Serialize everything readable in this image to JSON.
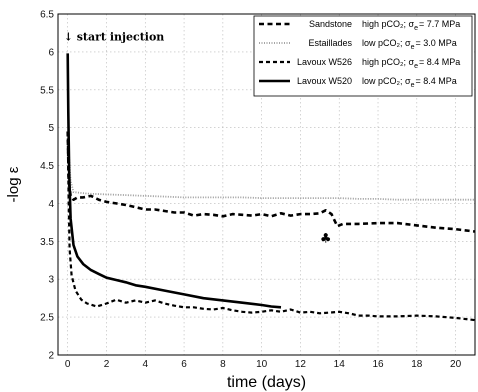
{
  "chart_data": {
    "type": "line",
    "xlabel": "time  (days)",
    "ylabel": "-log ε",
    "xlim": [
      -0.5,
      21
    ],
    "ylim": [
      2,
      6.5
    ],
    "xticks": [
      "0",
      "2",
      "4",
      "6",
      "8",
      "10",
      "12",
      "14",
      "16",
      "18",
      "20"
    ],
    "yticks": [
      "2",
      "2.5",
      "3",
      "3.5",
      "4",
      "4.5",
      "5",
      "5.5",
      "6",
      "6.5"
    ],
    "grid": true,
    "legend_position": "top-right",
    "annotations": [
      {
        "text": "↓ start injection",
        "x": 0,
        "y": 6.2
      },
      {
        "text": "♣",
        "x": 13.3,
        "y": 3.55
      }
    ],
    "series": [
      {
        "name": "Sandstone",
        "condition": "high pCO₂; σ",
        "sigma_sub": "e",
        "sigma_value": "= 7.7 MPa",
        "color": "#000000",
        "dash": "dashed-thick",
        "points": [
          [
            0,
            4.95
          ],
          [
            0.05,
            4.3
          ],
          [
            0.15,
            4.1
          ],
          [
            0.3,
            4.05
          ],
          [
            0.5,
            4.08
          ],
          [
            0.8,
            4.08
          ],
          [
            1.2,
            4.1
          ],
          [
            1.6,
            4.05
          ],
          [
            2.0,
            4.02
          ],
          [
            2.5,
            4.0
          ],
          [
            3.0,
            3.98
          ],
          [
            3.5,
            3.95
          ],
          [
            4.0,
            3.92
          ],
          [
            4.5,
            3.92
          ],
          [
            5.0,
            3.9
          ],
          [
            5.5,
            3.88
          ],
          [
            6.0,
            3.88
          ],
          [
            6.5,
            3.84
          ],
          [
            7.0,
            3.86
          ],
          [
            7.5,
            3.85
          ],
          [
            8.0,
            3.83
          ],
          [
            8.5,
            3.86
          ],
          [
            9.0,
            3.85
          ],
          [
            9.5,
            3.84
          ],
          [
            10.0,
            3.86
          ],
          [
            10.5,
            3.83
          ],
          [
            11.0,
            3.87
          ],
          [
            11.5,
            3.84
          ],
          [
            12.0,
            3.86
          ],
          [
            12.5,
            3.86
          ],
          [
            13.0,
            3.87
          ],
          [
            13.3,
            3.91
          ],
          [
            13.6,
            3.86
          ],
          [
            13.9,
            3.7
          ],
          [
            14.2,
            3.73
          ],
          [
            15.0,
            3.73
          ],
          [
            16.0,
            3.74
          ],
          [
            17.0,
            3.74
          ],
          [
            18.0,
            3.71
          ],
          [
            19.0,
            3.68
          ],
          [
            20.0,
            3.66
          ],
          [
            21.0,
            3.63
          ]
        ]
      },
      {
        "name": "Estaillades",
        "condition": "low pCO₂; σ",
        "sigma_sub": "e",
        "sigma_value": "= 3.0 MPa",
        "color": "#999999",
        "dash": "dotted",
        "points": [
          [
            0,
            5.9
          ],
          [
            0.05,
            4.7
          ],
          [
            0.15,
            4.3
          ],
          [
            0.3,
            4.15
          ],
          [
            1.0,
            4.13
          ],
          [
            2.0,
            4.12
          ],
          [
            3.0,
            4.11
          ],
          [
            4.0,
            4.1
          ],
          [
            5.0,
            4.09
          ],
          [
            6.0,
            4.08
          ],
          [
            7.0,
            4.08
          ],
          [
            8.0,
            4.08
          ],
          [
            9.0,
            4.08
          ],
          [
            10.0,
            4.07
          ],
          [
            11.0,
            4.07
          ],
          [
            12.0,
            4.07
          ],
          [
            13.0,
            4.07
          ],
          [
            14.0,
            4.07
          ],
          [
            15.0,
            4.06
          ],
          [
            16.0,
            4.06
          ],
          [
            17.0,
            4.05
          ],
          [
            18.0,
            4.05
          ],
          [
            19.0,
            4.05
          ],
          [
            20.0,
            4.05
          ],
          [
            21.0,
            4.05
          ]
        ]
      },
      {
        "name": "Lavoux W526",
        "condition": "high pCO₂; σ",
        "sigma_sub": "e",
        "sigma_value": "= 8.4 MPa",
        "color": "#000000",
        "dash": "dashed-fine",
        "points": [
          [
            0,
            4.95
          ],
          [
            0.05,
            4.0
          ],
          [
            0.1,
            3.4
          ],
          [
            0.2,
            3.05
          ],
          [
            0.4,
            2.85
          ],
          [
            0.7,
            2.73
          ],
          [
            1.0,
            2.68
          ],
          [
            1.5,
            2.64
          ],
          [
            2.0,
            2.68
          ],
          [
            2.5,
            2.73
          ],
          [
            3.0,
            2.69
          ],
          [
            3.5,
            2.72
          ],
          [
            4.0,
            2.69
          ],
          [
            4.5,
            2.72
          ],
          [
            5.0,
            2.68
          ],
          [
            5.5,
            2.65
          ],
          [
            6.0,
            2.63
          ],
          [
            6.5,
            2.63
          ],
          [
            7.0,
            2.61
          ],
          [
            7.5,
            2.6
          ],
          [
            8.0,
            2.62
          ],
          [
            8.5,
            2.59
          ],
          [
            9.0,
            2.57
          ],
          [
            9.5,
            2.56
          ],
          [
            10.0,
            2.57
          ],
          [
            10.5,
            2.59
          ],
          [
            11.0,
            2.57
          ],
          [
            11.5,
            2.6
          ],
          [
            12.0,
            2.56
          ],
          [
            12.5,
            2.57
          ],
          [
            13.0,
            2.55
          ],
          [
            13.5,
            2.56
          ],
          [
            14.0,
            2.57
          ],
          [
            14.5,
            2.55
          ],
          [
            15.0,
            2.52
          ],
          [
            15.5,
            2.52
          ],
          [
            16.0,
            2.51
          ],
          [
            17.0,
            2.51
          ],
          [
            18.0,
            2.52
          ],
          [
            19.0,
            2.51
          ],
          [
            20.0,
            2.49
          ],
          [
            21.0,
            2.46
          ]
        ]
      },
      {
        "name": "Lavoux W520",
        "condition": "low pCO₂; σ",
        "sigma_sub": "e",
        "sigma_value": "= 8.4 MPa",
        "color": "#000000",
        "dash": "solid",
        "points": [
          [
            0,
            5.98
          ],
          [
            0.03,
            5.2
          ],
          [
            0.08,
            4.4
          ],
          [
            0.15,
            3.8
          ],
          [
            0.3,
            3.45
          ],
          [
            0.5,
            3.3
          ],
          [
            0.8,
            3.2
          ],
          [
            1.2,
            3.12
          ],
          [
            1.6,
            3.07
          ],
          [
            2.0,
            3.02
          ],
          [
            2.5,
            2.99
          ],
          [
            3.0,
            2.96
          ],
          [
            3.5,
            2.92
          ],
          [
            4.0,
            2.9
          ],
          [
            5.0,
            2.85
          ],
          [
            6.0,
            2.8
          ],
          [
            7.0,
            2.75
          ],
          [
            8.0,
            2.72
          ],
          [
            9.0,
            2.69
          ],
          [
            10.0,
            2.66
          ],
          [
            10.5,
            2.64
          ],
          [
            11.0,
            2.63
          ]
        ]
      }
    ]
  }
}
